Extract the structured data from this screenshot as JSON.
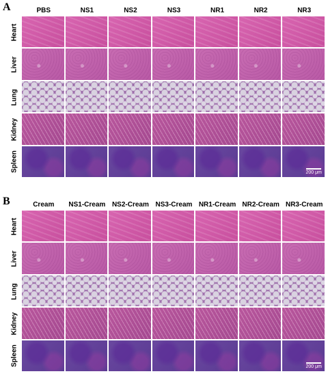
{
  "panels": [
    {
      "label": "A",
      "columns": [
        "PBS",
        "NS1",
        "NS2",
        "NS3",
        "NR1",
        "NR2",
        "NR3"
      ],
      "rows": [
        "Heart",
        "Liver",
        "Lung",
        "Kidney",
        "Spleen"
      ],
      "scale_bar": "200 μm"
    },
    {
      "label": "B",
      "columns": [
        "Cream",
        "NS1-Cream",
        "NS2-Cream",
        "NS3-Cream",
        "NR1-Cream",
        "NR2-Cream",
        "NR3-Cream"
      ],
      "rows": [
        "Heart",
        "Liver",
        "Lung",
        "Kidney",
        "Spleen"
      ],
      "scale_bar": "200 μm"
    }
  ]
}
